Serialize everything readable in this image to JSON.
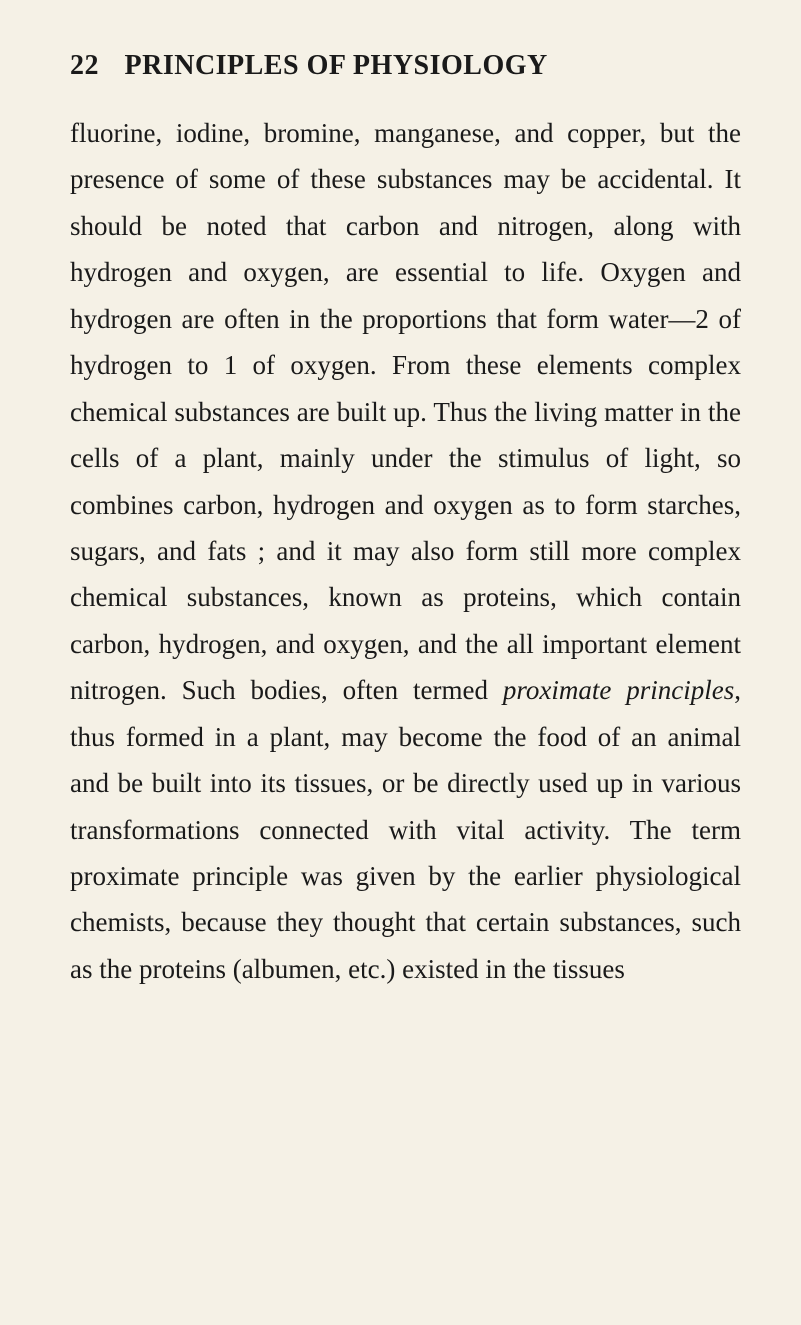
{
  "page": {
    "number": "22",
    "title": "PRINCIPLES OF PHYSIOLOGY",
    "text_1": "fluorine, iodine, bromine, manganese, and copper, but the presence of some of these sub­stances may be accidental. It should be noted that carbon and nitrogen, along with hydrogen and oxygen, are essential to life. Oxygen and hydrogen are often in the proportions that form water—2 of hydrogen to 1 of oxygen. From these elements complex chemical substances are built up. Thus the living matter in the cells of a plant, mainly under the stimulus of light, so combines carbon, hydrogen and oxygen as to form starches, sugars, and fats ; and it may also form still more complex chemical substances, known as proteins, which contain carbon, hydrogen, and oxygen, and the all important element nitrogen. Such bodies, often termed ",
    "italic_1": "proximate prin­ciples",
    "text_2": ", thus formed in a plant, may become the food of an animal and be built into its tissues, or be directly used up in various transformations connected with vital activity. The term proximate principle was given by the earlier physiological chemists, because they thought that certain substances, such as the proteins (albumen, etc.) existed in the tissues"
  },
  "style": {
    "background_color": "#f5f1e6",
    "text_color": "#1a1a1a",
    "header_fontsize": 28,
    "body_fontsize": 27,
    "line_height": 1.72,
    "font_family": "Georgia, Times New Roman, serif"
  }
}
